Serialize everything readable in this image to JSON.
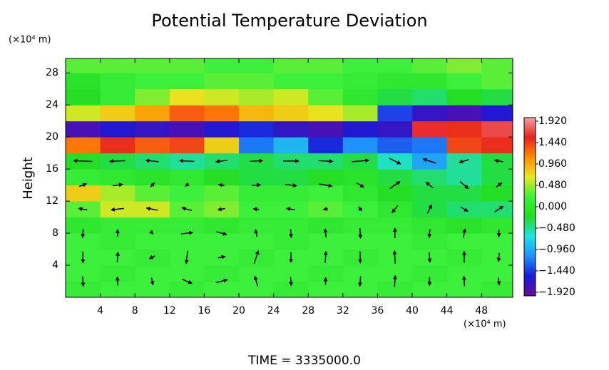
{
  "chart_data": {
    "type": "heatmap",
    "title": "Potential Temperature Deviation",
    "y_label": "Height",
    "y_unit": "(×10⁴ m)",
    "x_unit": "(×10⁴ m)",
    "footer": "TIME = 3335000.0",
    "xlim": [
      0,
      51.6
    ],
    "ylim": [
      0,
      29.8
    ],
    "xticks": [
      4,
      8,
      12,
      16,
      20,
      24,
      28,
      32,
      36,
      40,
      44,
      48
    ],
    "yticks": [
      4,
      8,
      12,
      16,
      20,
      24,
      28
    ],
    "clim": [
      -2.0,
      2.0
    ],
    "cticks": [
      {
        "value": 1.92,
        "label": "1.920"
      },
      {
        "value": 1.44,
        "label": "1.440"
      },
      {
        "value": 0.96,
        "label": "0.960"
      },
      {
        "value": 0.48,
        "label": "0.480"
      },
      {
        "value": 0,
        "label": "0.000"
      },
      {
        "value": -0.48,
        "label": "−0.480"
      },
      {
        "value": -0.96,
        "label": "−0.960"
      },
      {
        "value": -1.44,
        "label": "−1.440"
      },
      {
        "value": -1.92,
        "label": "−1.920"
      }
    ],
    "colormap": [
      "#6a0a9a",
      "#1a1ad8",
      "#1e90ff",
      "#20e0e0",
      "#22dd22",
      "#3cf03c",
      "#e8e820",
      "#ff8c00",
      "#e82020",
      "#f4a0a0"
    ],
    "x": [
      2,
      6,
      10,
      14,
      18,
      22,
      26,
      30,
      34,
      38,
      42,
      46,
      50
    ],
    "y": [
      1,
      3,
      5,
      7,
      9,
      11,
      13,
      15,
      17,
      19,
      21,
      23,
      25,
      27,
      29
    ],
    "values": [
      [
        0.1,
        0.2,
        0.2,
        0.1,
        0.2,
        0.2,
        0.1,
        0.2,
        0.2,
        0.1,
        0.2,
        0.2,
        0.1
      ],
      [
        0.2,
        0.1,
        0.2,
        0.2,
        0.1,
        0.2,
        0.2,
        0.1,
        0.2,
        0.2,
        0.1,
        0.2,
        0.2
      ],
      [
        0.2,
        0.2,
        0.1,
        0.2,
        0.2,
        0.1,
        0.2,
        0.2,
        0.1,
        0.2,
        0.2,
        0.1,
        0.2
      ],
      [
        0.2,
        0.1,
        0.2,
        0.2,
        0.2,
        0.2,
        0.1,
        0.2,
        0.2,
        0.2,
        0.1,
        0.2,
        0.2
      ],
      [
        0.0,
        0.1,
        0.1,
        0.1,
        0.0,
        0.1,
        0.1,
        0.0,
        0.1,
        0.1,
        0.0,
        -0.1,
        0.0
      ],
      [
        0.3,
        0.6,
        0.6,
        0.3,
        0.4,
        0.2,
        0.2,
        0.3,
        0.2,
        0.0,
        -0.3,
        -0.4,
        -0.4
      ],
      [
        0.8,
        0.5,
        0.3,
        0.2,
        0.3,
        0.1,
        0.1,
        0.2,
        0.0,
        -0.2,
        -0.3,
        -0.3,
        -0.2
      ],
      [
        0.1,
        0.0,
        -0.1,
        0.0,
        -0.2,
        -0.3,
        -0.3,
        -0.2,
        -0.1,
        -0.3,
        -0.4,
        -0.5,
        -0.3
      ],
      [
        -0.2,
        -0.3,
        -0.4,
        -0.5,
        -0.4,
        -0.3,
        -0.4,
        -0.4,
        -0.3,
        -0.6,
        -1.0,
        -0.5,
        -0.3
      ],
      [
        1.2,
        1.5,
        1.3,
        1.4,
        0.8,
        -1.2,
        -0.9,
        -1.5,
        -1.1,
        -1.3,
        -1.2,
        1.4,
        1.5
      ],
      [
        -1.8,
        -1.6,
        -1.7,
        -1.8,
        -1.6,
        -1.5,
        -1.7,
        -1.8,
        -1.6,
        -1.7,
        1.6,
        1.5,
        1.7
      ],
      [
        0.6,
        0.8,
        1.0,
        1.3,
        1.2,
        0.9,
        0.8,
        0.7,
        0.5,
        -1.4,
        -1.7,
        -1.8,
        -1.6
      ],
      [
        -0.2,
        0.1,
        0.4,
        0.7,
        0.6,
        0.5,
        0.6,
        0.3,
        0.0,
        -0.3,
        -0.4,
        -0.2,
        -0.3
      ],
      [
        -0.1,
        0.1,
        0.2,
        0.2,
        0.3,
        0.3,
        0.2,
        0.2,
        0.1,
        0.0,
        0.0,
        0.2,
        0.3
      ],
      [
        0.3,
        0.3,
        0.3,
        0.3,
        0.2,
        0.2,
        0.3,
        0.3,
        0.2,
        0.2,
        0.3,
        0.4,
        0.3
      ]
    ],
    "vectors": {
      "color": "#000000",
      "x": [
        2,
        6,
        10,
        14,
        18,
        22,
        26,
        30,
        34,
        38,
        42,
        46,
        50
      ],
      "y": [
        2,
        5,
        8,
        11,
        14,
        17
      ],
      "u": [
        [
          1,
          -1,
          2,
          14,
          16,
          -4,
          1,
          0,
          -1,
          1,
          0,
          -1,
          1
        ],
        [
          0,
          1,
          -8,
          -2,
          10,
          6,
          0,
          1,
          0,
          -1,
          1,
          0,
          -1
        ],
        [
          -1,
          0,
          2,
          16,
          14,
          -2,
          1,
          -1,
          1,
          0,
          -1,
          2,
          0
        ],
        [
          -12,
          -18,
          -16,
          -14,
          -10,
          -8,
          -12,
          -6,
          -4,
          -8,
          6,
          10,
          12
        ],
        [
          10,
          14,
          6,
          -4,
          -8,
          12,
          16,
          18,
          10,
          14,
          -10,
          12,
          8
        ],
        [
          -26,
          -22,
          -18,
          -20,
          -16,
          18,
          22,
          20,
          24,
          16,
          -18,
          -14,
          -12
        ]
      ],
      "v": [
        [
          -14,
          12,
          -10,
          -6,
          4,
          14,
          -12,
          10,
          -14,
          16,
          -12,
          14,
          -10
        ],
        [
          -16,
          14,
          -4,
          -18,
          2,
          18,
          -14,
          16,
          -16,
          18,
          -14,
          16,
          -12
        ],
        [
          -12,
          10,
          -2,
          2,
          -4,
          10,
          -12,
          12,
          -14,
          14,
          -12,
          12,
          -10
        ],
        [
          2,
          -2,
          3,
          4,
          -2,
          1,
          2,
          -1,
          6,
          -10,
          12,
          -6,
          8
        ],
        [
          4,
          2,
          6,
          -3,
          2,
          1,
          -2,
          -3,
          -6,
          10,
          8,
          -10,
          6
        ],
        [
          1,
          -1,
          2,
          1,
          -2,
          1,
          0,
          -1,
          2,
          -8,
          6,
          -4,
          2
        ]
      ]
    }
  }
}
